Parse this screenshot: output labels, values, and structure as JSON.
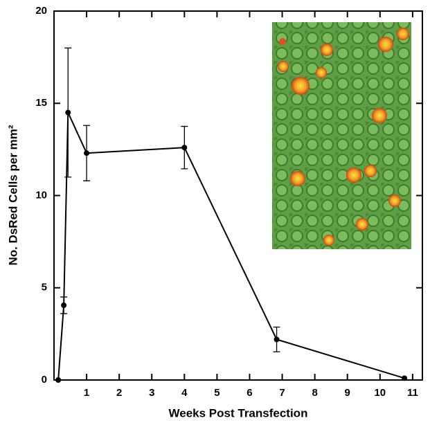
{
  "chart_data": {
    "type": "line",
    "xlabel": "Weeks Post Transfection",
    "ylabel": "No. DsRed Cells per mm²",
    "x": [
      0.13,
      0.3,
      0.43,
      1,
      4,
      6.83,
      10.75
    ],
    "values": [
      0,
      4.05,
      14.5,
      12.3,
      12.6,
      2.2,
      0.1
    ],
    "errors": [
      0,
      0.45,
      3.5,
      1.5,
      1.15,
      0.67,
      0
    ],
    "color": "#000000",
    "xlim": [
      0,
      11.3
    ],
    "xticks": [
      1,
      2,
      3,
      4,
      5,
      6,
      7,
      8,
      9,
      10,
      11
    ],
    "ylim": [
      0,
      20
    ],
    "yticks": [
      0,
      5,
      10,
      15,
      20
    ]
  }
}
